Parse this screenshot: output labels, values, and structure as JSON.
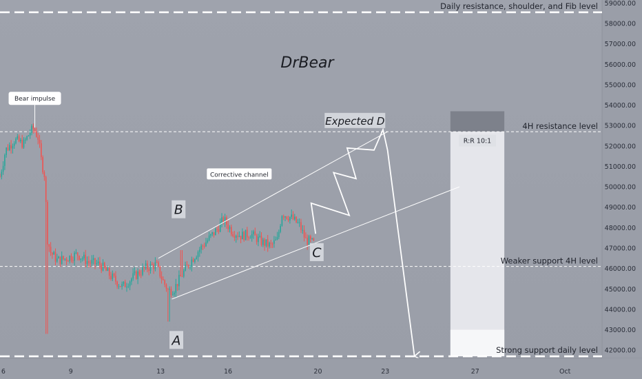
{
  "chart_data": {
    "type": "candlestick",
    "title": "DrBear",
    "ylim": [
      41600,
      59150
    ],
    "y_ticks": [
      "59000.00",
      "58000.00",
      "57000.00",
      "56000.00",
      "55000.00",
      "54000.00",
      "53000.00",
      "52000.00",
      "51000.00",
      "50000.00",
      "49000.00",
      "48000.00",
      "47000.00",
      "46000.00",
      "45000.00",
      "44000.00",
      "43000.00",
      "42000.00"
    ],
    "x_ticks": [
      {
        "label": "6",
        "day": 6
      },
      {
        "label": "9",
        "day": 9
      },
      {
        "label": "13",
        "day": 13
      },
      {
        "label": "16",
        "day": 16
      },
      {
        "label": "20",
        "day": 20
      },
      {
        "label": "23",
        "day": 23
      },
      {
        "label": "27",
        "day": 27
      },
      {
        "label": "Oct",
        "day": 31
      }
    ],
    "xlim_days": [
      5.85,
      32.65
    ],
    "price_keypoints": [
      [
        5.85,
        50500
      ],
      [
        6.1,
        51800
      ],
      [
        6.5,
        52300
      ],
      [
        6.9,
        52100
      ],
      [
        7.2,
        52700
      ],
      [
        7.35,
        52850
      ],
      [
        7.55,
        52400
      ],
      [
        7.7,
        51200
      ],
      [
        7.85,
        50500
      ],
      [
        7.95,
        47500
      ],
      [
        8.1,
        46800
      ],
      [
        8.4,
        46400
      ],
      [
        8.8,
        46500
      ],
      [
        9.3,
        46700
      ],
      [
        9.8,
        46300
      ],
      [
        10.3,
        46200
      ],
      [
        10.8,
        45600
      ],
      [
        11.3,
        45100
      ],
      [
        11.8,
        45600
      ],
      [
        12.3,
        46000
      ],
      [
        12.8,
        46200
      ],
      [
        13.1,
        45400
      ],
      [
        13.35,
        44900
      ],
      [
        13.6,
        45000
      ],
      [
        13.9,
        45600
      ],
      [
        14.3,
        46300
      ],
      [
        14.7,
        46900
      ],
      [
        15.1,
        47400
      ],
      [
        15.5,
        47900
      ],
      [
        15.8,
        48400
      ],
      [
        16.2,
        47800
      ],
      [
        16.6,
        47600
      ],
      [
        17.0,
        47700
      ],
      [
        17.5,
        47300
      ],
      [
        17.9,
        47100
      ],
      [
        18.2,
        47400
      ],
      [
        18.4,
        48700
      ],
      [
        18.8,
        48500
      ],
      [
        19.2,
        48100
      ],
      [
        19.45,
        47400
      ],
      [
        19.7,
        47300
      ],
      [
        19.85,
        47200
      ]
    ],
    "levels": [
      {
        "name": "daily-resistance",
        "label": "Daily resistance, shoulder, and Fib level",
        "price": 58550,
        "style": "heavy"
      },
      {
        "name": "4h-resistance",
        "label": "4H resistance level",
        "price": 52700,
        "style": "thin"
      },
      {
        "name": "weaker-support",
        "label": "Weaker support 4H level",
        "price": 46100,
        "style": "thin"
      },
      {
        "name": "strong-support",
        "label": "Strong support daily level",
        "price": 41700,
        "style": "heavy"
      }
    ],
    "channel": {
      "upper": [
        [
          12.9,
          46500
        ],
        [
          23.1,
          52700
        ]
      ],
      "lower": [
        [
          13.5,
          44500
        ],
        [
          26.3,
          50000
        ]
      ],
      "label": "Corrective channel"
    },
    "projection": [
      [
        19.9,
        47700
      ],
      [
        19.7,
        49200
      ],
      [
        21.4,
        48600
      ],
      [
        20.7,
        50700
      ],
      [
        21.7,
        50400
      ],
      [
        21.3,
        51900
      ],
      [
        22.5,
        51800
      ],
      [
        22.9,
        52800
      ],
      [
        23.1,
        51800
      ],
      [
        24.3,
        41700
      ]
    ],
    "wave_labels": [
      {
        "label": "A",
        "day": 13.7,
        "price": 42500
      },
      {
        "label": "B",
        "day": 13.8,
        "price": 48900
      },
      {
        "label": "C",
        "day": 19.95,
        "price": 46800
      }
    ],
    "expected_d": {
      "label": "Expected D",
      "day": 21.65,
      "price": 53250
    },
    "bear_impulse": {
      "label": "Bear impulse",
      "day": 7.4,
      "price": 54350
    },
    "risk_reward": {
      "label": "R:R 10:1",
      "day0": 25.9,
      "day1": 28.3,
      "entry": 52700,
      "stop": 53700,
      "target": 41700
    }
  }
}
